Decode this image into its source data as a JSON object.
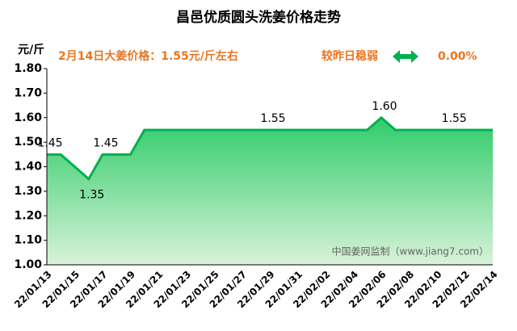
{
  "chart_data": {
    "type": "area",
    "title": "昌邑优质圆头洗姜价格走势",
    "y_unit": "元/斤",
    "headline": "2月14日大姜价格：1.55元/斤左右",
    "change_text": "较昨日稳弱",
    "change_value": "0.00%",
    "watermark": "中国姜网监制（www.jiang7.com）",
    "categories": [
      "22/01/13",
      null,
      "22/01/15",
      null,
      "22/01/17",
      null,
      "22/01/19",
      null,
      "22/01/21",
      null,
      "22/01/23",
      null,
      "22/01/25",
      null,
      "22/01/27",
      null,
      "22/01/29",
      null,
      "22/01/31",
      null,
      "22/02/02",
      null,
      "22/02/04",
      null,
      "22/02/06",
      null,
      "22/02/08",
      null,
      "22/02/10",
      null,
      "22/02/12",
      null,
      "22/02/14"
    ],
    "values": [
      1.45,
      1.45,
      1.4,
      1.35,
      1.45,
      1.45,
      1.45,
      1.55,
      1.55,
      1.55,
      1.55,
      1.55,
      1.55,
      1.55,
      1.55,
      1.55,
      1.55,
      1.55,
      1.55,
      1.55,
      1.55,
      1.55,
      1.55,
      1.55,
      1.6,
      1.55,
      1.55,
      1.55,
      1.55,
      1.55,
      1.55,
      1.55,
      1.55
    ],
    "value_labels": [
      "1.45",
      null,
      null,
      "1.35",
      "1.45",
      null,
      null,
      null,
      null,
      null,
      null,
      null,
      null,
      null,
      null,
      null,
      "1.55",
      null,
      null,
      null,
      null,
      null,
      null,
      null,
      "1.60",
      null,
      null,
      null,
      null,
      "1.55",
      null,
      null,
      null
    ],
    "color": "#00b050",
    "ylim": [
      1.0,
      1.8
    ],
    "yticks": [
      {
        "value": 1.0,
        "label": "1.00"
      },
      {
        "value": 1.1,
        "label": "1.10"
      },
      {
        "value": 1.2,
        "label": "1.20"
      },
      {
        "value": 1.3,
        "label": "1.30"
      },
      {
        "value": 1.4,
        "label": "1.40"
      },
      {
        "value": 1.5,
        "label": "1.50"
      },
      {
        "value": 1.6,
        "label": "1.60"
      },
      {
        "value": 1.7,
        "label": "1.70"
      },
      {
        "value": 1.8,
        "label": "1.80"
      }
    ]
  }
}
